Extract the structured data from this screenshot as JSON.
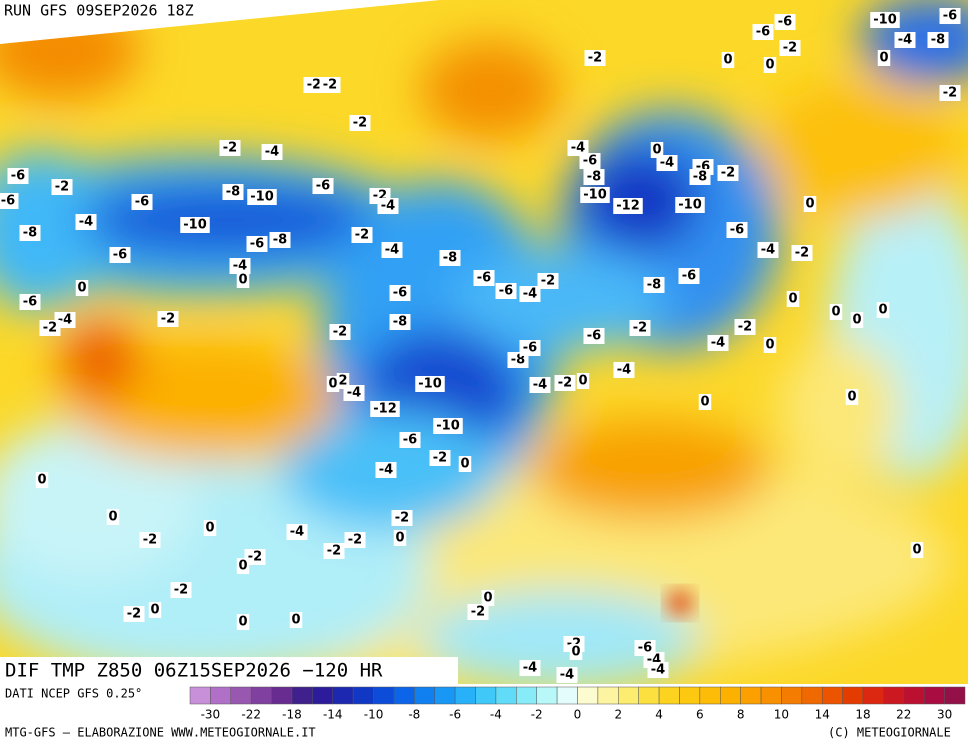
{
  "header": {
    "run": "RUN GFS 09SEP2026 18Z"
  },
  "map": {
    "contour_labels": [
      -6,
      -10,
      -6,
      -6,
      -4,
      -8,
      -2,
      0,
      0,
      0,
      -2,
      -2,
      -2,
      -2,
      -2,
      -2,
      -4,
      -6,
      -2,
      -6,
      -8,
      -10,
      -6,
      -2,
      -4,
      -6,
      -4,
      -10,
      -8,
      -6,
      -6,
      -8,
      -2,
      -4,
      -4,
      0,
      0,
      -6,
      -2,
      -4,
      -2,
      -2,
      -8,
      -6,
      -8,
      -6,
      -6,
      -4,
      -2,
      -4,
      -6,
      -8,
      -4,
      0,
      -6,
      -8,
      -2,
      -10,
      -12,
      -10,
      0,
      -6,
      -4,
      -2,
      -8,
      -6,
      0,
      0,
      0,
      0,
      -2,
      -6,
      -2,
      -4,
      0,
      -8,
      -6,
      -4,
      -4,
      -2,
      0,
      0,
      2,
      -4,
      -10,
      -12,
      -10,
      -6,
      -2,
      0,
      0,
      0,
      -4,
      0,
      0,
      0,
      -2,
      -4,
      -2,
      0,
      -2,
      -2,
      -2,
      0,
      0,
      -2,
      -2,
      0,
      0,
      -2,
      0,
      0,
      -2,
      0,
      -6,
      -4,
      -4,
      -4,
      -4
    ]
  },
  "footer": {
    "title": "DIF TMP Z850 06Z15SEP2026 −120 HR",
    "source": "DATI NCEP GFS 0.25°",
    "credit": "MTG-GFS — ELABORAZIONE WWW.METEOGIORNALE.IT",
    "copyright": "(C) METEOGIORNALE"
  },
  "colorbar": {
    "colors": [
      "#c890d8",
      "#b070c8",
      "#9858b0",
      "#8040a0",
      "#682c90",
      "#40208c",
      "#2c1c9c",
      "#1c28b0",
      "#1038c4",
      "#0c4cd8",
      "#0c64e8",
      "#1080f0",
      "#1898f4",
      "#28b0f8",
      "#40c8f8",
      "#60dcf8",
      "#88ecf8",
      "#b8f8f8",
      "#e4fcfc",
      "#fcfcd0",
      "#fcf4a0",
      "#fcec70",
      "#fce040",
      "#fcd420",
      "#fcc810",
      "#fcbc08",
      "#fcb000",
      "#fca000",
      "#f89000",
      "#f47c00",
      "#f06800",
      "#ec5400",
      "#e43c00",
      "#dc2810",
      "#cc1820",
      "#bc1030",
      "#a80c40",
      "#941048"
    ],
    "ticks": [
      -30,
      -22,
      -18,
      -14,
      -10,
      -8,
      -6,
      -4,
      -2,
      0,
      2,
      4,
      6,
      8,
      10,
      14,
      18,
      22,
      30
    ]
  }
}
